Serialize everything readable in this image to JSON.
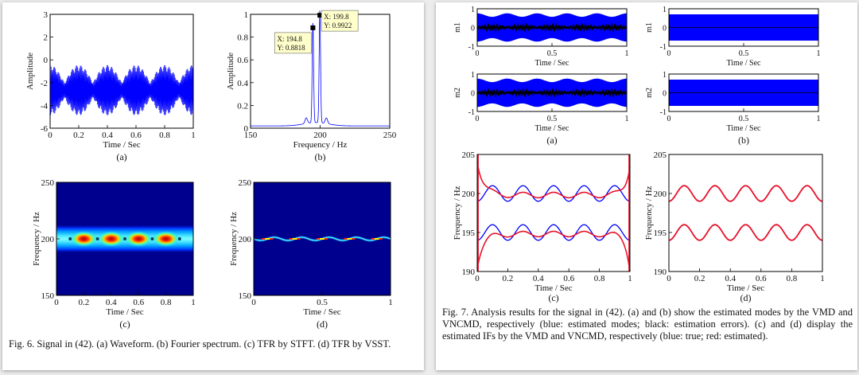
{
  "fig6": {
    "caption": "Fig. 6. Signal in (42). (a) Waveform. (b) Fourier spectrum. (c) TFR by STFT. (d) TFR by VSST.",
    "a": {
      "label": "(a)",
      "ylabel": "Amplitude",
      "xlabel": "Time / Sec",
      "xticks": [
        "0",
        "0.2",
        "0.4",
        "0.6",
        "0.8",
        "1"
      ],
      "yticks": [
        "-6",
        "-4",
        "-2",
        "0",
        "2",
        "3"
      ]
    },
    "b": {
      "label": "(b)",
      "ylabel": "Amplitude",
      "xlabel": "Frequency / Hz",
      "xticks": [
        "150",
        "200",
        "250"
      ],
      "yticks": [
        "0",
        "0.2",
        "0.4",
        "0.6",
        "0.8",
        "1"
      ],
      "annotations": [
        {
          "x_text": "X: 194.8",
          "y_text": "Y: 0.8818"
        },
        {
          "x_text": "X: 199.8",
          "y_text": "Y: 0.9922"
        }
      ]
    },
    "c": {
      "label": "(c)",
      "ylabel": "Frequency / Hz",
      "xlabel": "Time / Sec",
      "xticks": [
        "0",
        "0.2",
        "0.4",
        "0.6",
        "0.8",
        "1"
      ],
      "yticks": [
        "150",
        "200",
        "250"
      ]
    },
    "d": {
      "label": "(d)",
      "ylabel": "Frequency / Hz",
      "xlabel": "Time / Sec",
      "xticks": [
        "0",
        "0.5",
        "1"
      ],
      "yticks": [
        "150",
        "200",
        "250"
      ]
    }
  },
  "fig7": {
    "caption": "Fig. 7. Analysis results for the signal in (42). (a) and (b) show the estimated modes by the VMD and VNCMD, respectively (blue: estimated modes; black: estimation errors). (c) and (d) display the estimated IFs by the VMD and VNCMD, respectively (blue: true; red: estimated).",
    "mode_panels": {
      "ylabels": [
        "m1",
        "m2"
      ],
      "xlabel": "Time / Sec",
      "xticks": [
        "0",
        "0.5",
        "1"
      ],
      "yticks": [
        "-1",
        "0",
        "1"
      ]
    },
    "a_label": "(a)",
    "b_label": "(b)",
    "c": {
      "label": "(c)",
      "ylabel": "Frequency / Hz",
      "xlabel": "Time / Sec",
      "xticks": [
        "0",
        "0.2",
        "0.4",
        "0.6",
        "0.8",
        "1"
      ],
      "yticks": [
        "190",
        "195",
        "200",
        "205"
      ]
    },
    "d": {
      "label": "(d)",
      "ylabel": "Frequency / Hz",
      "xlabel": "Time / Sec",
      "xticks": [
        "0",
        "0.2",
        "0.4",
        "0.6",
        "0.8",
        "1"
      ],
      "yticks": [
        "190",
        "195",
        "200",
        "205"
      ]
    }
  },
  "colors": {
    "signal_blue": "#0000ff",
    "estimate_red": "#e8132a",
    "error_black": "#000000",
    "map_dark": "#00008f"
  }
}
